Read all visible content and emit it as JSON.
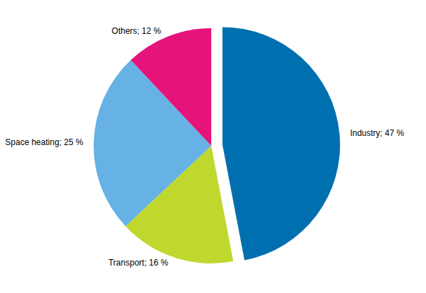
{
  "chart_data": {
    "type": "pie",
    "categories": [
      "Industry",
      "Transport",
      "Space heating",
      "Others"
    ],
    "values": [
      47,
      16,
      25,
      12
    ],
    "value_labels": [
      "Industry; 47 %",
      "Transport; 16 %",
      "Space heating; 25 %",
      "Others; 12 %"
    ],
    "colors": [
      "#006fb0",
      "#c0d72e",
      "#66b2e4",
      "#e5147a"
    ],
    "data_labels": true,
    "legend": "none"
  }
}
